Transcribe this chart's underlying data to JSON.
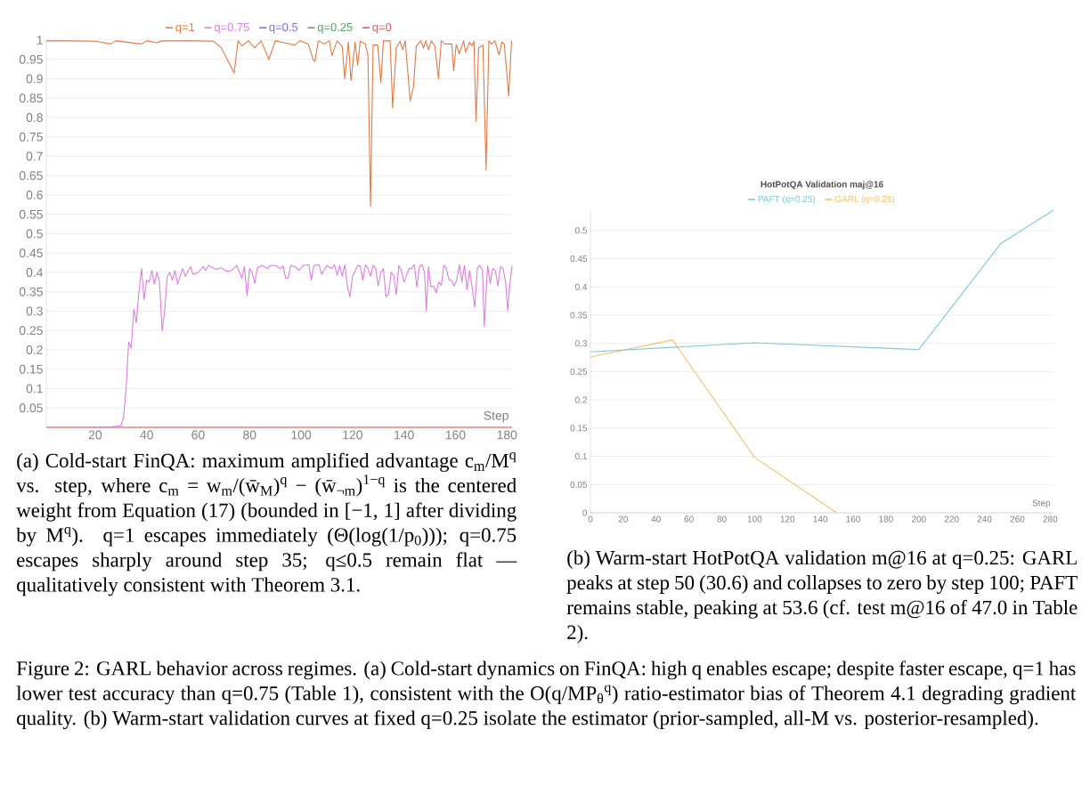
{
  "chart_data": [
    {
      "type": "line",
      "xlabel": "Step",
      "xlim": [
        1,
        182
      ],
      "xticks": [
        20,
        40,
        60,
        80,
        100,
        120,
        140,
        160,
        180
      ],
      "ylim": [
        0,
        1
      ],
      "yticks": [
        0.05,
        0.1,
        0.15,
        0.2,
        0.25,
        0.3,
        0.35,
        0.4,
        0.45,
        0.5,
        0.55,
        0.6,
        0.65,
        0.7,
        0.75,
        0.8,
        0.85,
        0.9,
        0.95,
        1
      ],
      "grid": "y",
      "legend": "top",
      "series": [
        {
          "name": "q=1",
          "color": "#e07b46",
          "x": [
            1,
            10,
            20,
            26,
            28,
            38,
            40,
            44,
            46,
            60,
            66,
            69,
            74,
            75.5,
            77,
            79.5,
            82,
            84.5,
            87.5,
            90,
            93.5,
            97.5,
            99.5,
            102.8,
            104.7,
            105.4,
            106.7,
            109,
            111,
            112,
            114,
            116,
            117,
            118.4,
            119.4,
            121,
            122,
            123,
            125,
            126,
            127,
            128,
            129.8,
            131,
            132,
            134.6,
            135.6,
            137,
            138.5,
            139.5,
            140.5,
            142.4,
            143.7,
            144.8,
            146.5,
            147.6,
            148.5,
            149.5,
            150.6,
            152,
            153.4,
            154.5,
            156,
            158.6,
            159.3,
            160.3,
            161.5,
            163.2,
            164,
            165.5,
            166.4,
            167.2,
            168,
            169,
            170.7,
            171.9,
            173,
            174,
            175.3,
            177,
            178,
            179,
            180.7,
            181.8
          ],
          "values": [
            0.998,
            0.998,
            0.997,
            0.99,
            0.998,
            0.99,
            0.998,
            0.993,
            0.998,
            0.998,
            0.997,
            0.98,
            0.915,
            0.998,
            0.985,
            0.998,
            0.98,
            0.998,
            0.95,
            0.998,
            0.993,
            0.987,
            0.998,
            0.99,
            0.95,
            0.945,
            0.998,
            0.99,
            0.998,
            0.96,
            0.998,
            0.983,
            0.9,
            0.995,
            0.895,
            0.995,
            0.935,
            0.997,
            0.99,
            0.96,
            0.57,
            0.987,
            0.987,
            0.89,
            0.998,
            0.998,
            0.825,
            0.98,
            0.997,
            0.975,
            0.998,
            0.843,
            0.88,
            0.985,
            0.998,
            0.98,
            0.998,
            0.975,
            0.998,
            0.985,
            0.9,
            0.998,
            0.99,
            0.99,
            0.92,
            0.988,
            0.965,
            0.998,
            0.968,
            0.995,
            0.985,
            0.997,
            0.79,
            0.98,
            0.987,
            0.665,
            0.998,
            0.99,
            0.998,
            0.962,
            0.995,
            0.99,
            0.855,
            0.998
          ]
        },
        {
          "name": "q=0.75",
          "color": "#dd7ee0",
          "x": [
            18,
            26,
            30,
            31,
            32,
            33,
            34,
            35,
            36,
            37,
            38,
            39,
            40,
            41,
            42,
            43,
            44,
            45,
            46,
            47,
            48,
            49,
            50,
            51,
            52,
            54,
            55,
            57,
            58,
            60,
            62,
            63,
            64,
            67,
            69,
            71,
            73,
            75,
            77,
            78,
            79,
            80,
            81,
            82,
            83,
            85,
            87,
            88,
            90,
            92,
            93,
            94,
            95,
            96,
            98,
            99,
            101,
            103,
            104,
            105,
            107,
            108,
            110,
            112,
            113,
            114,
            115,
            116,
            117,
            118,
            119,
            120,
            122,
            123,
            124,
            125,
            126,
            127,
            128,
            129,
            130,
            131,
            132,
            133,
            134,
            135,
            136,
            137,
            138,
            139,
            140,
            142,
            143,
            144,
            145,
            146,
            147,
            148,
            148.7,
            149.5,
            150.5,
            151.5,
            152.5,
            153.5,
            154.5,
            155.5,
            156.5,
            157.5,
            158.5,
            159.5,
            160.5,
            161.5,
            162.5,
            163.5,
            164.5,
            165.5,
            166.5,
            167.5,
            168.5,
            169.5,
            170.5,
            171.2,
            172.5,
            173.5,
            174.5,
            175.5,
            176.5,
            177.5,
            178.5,
            179.5,
            180.3,
            181,
            182
          ],
          "values": [
            0,
            0.001,
            0.004,
            0.025,
            0.1,
            0.22,
            0.205,
            0.305,
            0.27,
            0.35,
            0.41,
            0.33,
            0.38,
            0.375,
            0.405,
            0.37,
            0.4,
            0.375,
            0.25,
            0.3,
            0.39,
            0.4,
            0.38,
            0.405,
            0.37,
            0.41,
            0.39,
            0.415,
            0.395,
            0.4,
            0.415,
            0.405,
            0.418,
            0.408,
            0.412,
            0.403,
            0.405,
            0.418,
            0.385,
            0.415,
            0.34,
            0.41,
            0.4,
            0.372,
            0.412,
            0.418,
            0.41,
            0.418,
            0.418,
            0.41,
            0.417,
            0.385,
            0.386,
            0.418,
            0.414,
            0.405,
            0.418,
            0.42,
            0.38,
            0.418,
            0.42,
            0.395,
            0.418,
            0.41,
            0.42,
            0.393,
            0.418,
            0.39,
            0.42,
            0.365,
            0.337,
            0.39,
            0.417,
            0.417,
            0.38,
            0.42,
            0.41,
            0.39,
            0.418,
            0.41,
            0.365,
            0.4,
            0.41,
            0.337,
            0.345,
            0.4,
            0.393,
            0.342,
            0.418,
            0.405,
            0.375,
            0.41,
            0.41,
            0.42,
            0.362,
            0.415,
            0.42,
            0.4,
            0.3,
            0.415,
            0.363,
            0.365,
            0.347,
            0.375,
            0.367,
            0.418,
            0.41,
            0.38,
            0.38,
            0.365,
            0.38,
            0.42,
            0.375,
            0.418,
            0.355,
            0.405,
            0.36,
            0.31,
            0.41,
            0.418,
            0.405,
            0.26,
            0.418,
            0.372,
            0.41,
            0.405,
            0.365,
            0.415,
            0.41,
            0.375,
            0.302,
            0.36,
            0.417
          ]
        },
        {
          "name": "q=0.5",
          "color": "#7a6ee0"
        },
        {
          "name": "q=0.25",
          "color": "#5a9c6a"
        },
        {
          "name": "q=0",
          "color": "#e8545e",
          "x": [
            1,
            182
          ],
          "values": [
            0,
            0
          ]
        }
      ],
      "annotations": [
        "(a) Cold-start FinQA: maximum amplified advantage c$_{m}$/M$^{q}$ vs. step, where c$_{m}$ = w$_{m}$/(w̄$_{M}$)$^{q}$ − (w̄$_{¬m}$)$^{1−q}$ is the centered weight from Equation (17) (bounded in [−1, 1] after dividing by M$^{q}$). q=1 escapes immediately (Θ(log(1/p$_{0}$))); q=0.75 escapes sharply around step 35; q≤0.5 remain flat — qualitatively consistent with Theorem 3.1.",
        "Figure 2: GARL behavior across regimes. (a) Cold-start dynamics on FinQA: high q enables escape; despite faster escape, q=1 has lower test accuracy than q=0.75 (Table 1), consistent with the O(q/MP$_{θ}$$^{q}$) ratio-estimator bias of Theorem 4.1 degrading gradient quality. (b) Warm-start validation curves at fixed q=0.25 isolate the estimator (prior-sampled, all-M vs. posterior-resampled)."
      ]
    },
    {
      "type": "line",
      "title": "HotPotQA Validation maj@16",
      "xlabel": "Step",
      "xlim": [
        0,
        282
      ],
      "xticks": [
        0,
        20,
        40,
        60,
        80,
        100,
        120,
        140,
        160,
        180,
        200,
        220,
        240,
        260,
        280
      ],
      "ylim": [
        0,
        0.536
      ],
      "yticks": [
        0,
        0.05,
        0.1,
        0.15,
        0.2,
        0.25,
        0.3,
        0.35,
        0.4,
        0.45,
        0.5
      ],
      "grid": "y",
      "legend": "top",
      "series": [
        {
          "name": "PAFT (q=0.25)",
          "color": "#7ec8dc",
          "x": [
            0,
            50,
            100,
            200,
            250,
            282
          ],
          "values": [
            0.285,
            0.293,
            0.301,
            0.289,
            0.477,
            0.536
          ]
        },
        {
          "name": "GARL (q=0.25)",
          "color": "#f4c06a",
          "x": [
            0,
            50,
            100,
            150
          ],
          "values": [
            0.276,
            0.306,
            0.098,
            0
          ]
        }
      ],
      "annotations": [
        "(b) Warm-start HotPotQA validation m@16 at q=0.25: GARL peaks at step 50 (30.6) and collapses to zero by step 100; PAFT remains stable, peaking at 53.6 (cf. test m@16 of 47.0 in Table 2)."
      ]
    }
  ]
}
